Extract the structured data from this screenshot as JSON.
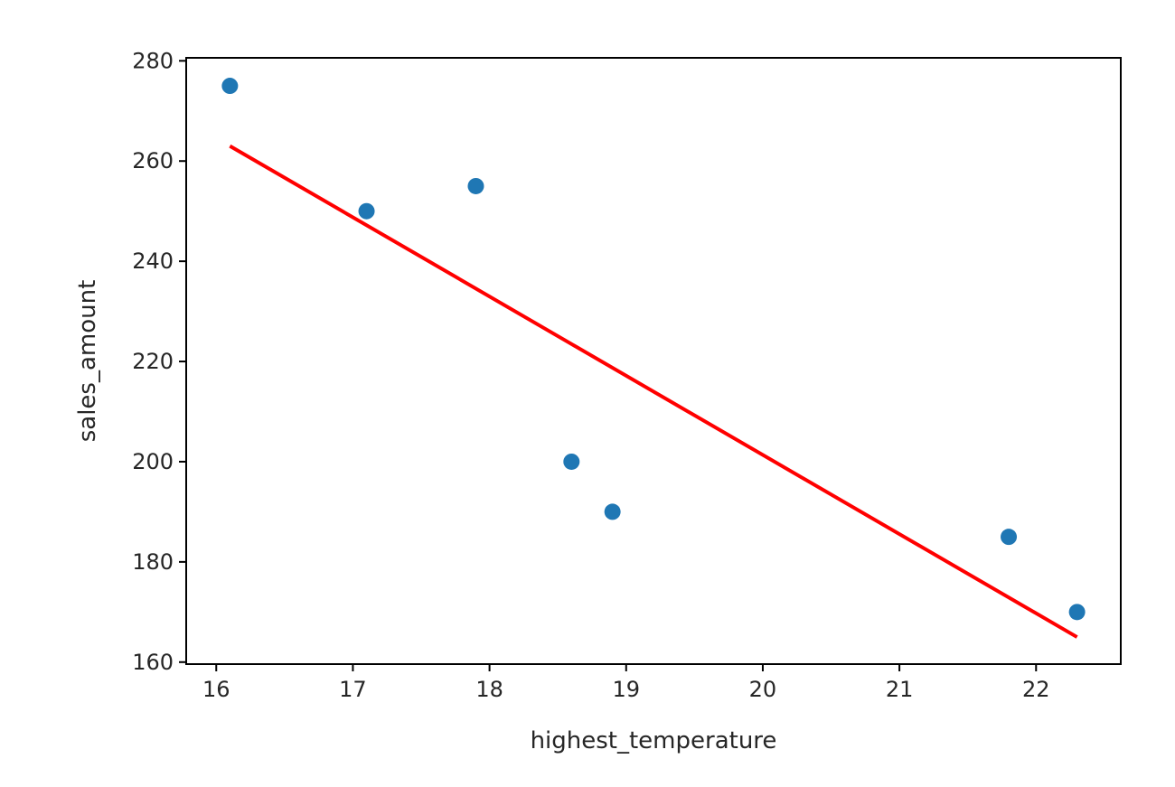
{
  "chart_data": {
    "type": "scatter",
    "title": "",
    "xlabel": "highest_temperature",
    "ylabel": "sales_amount",
    "xlim": [
      15.78,
      22.62
    ],
    "ylim": [
      159.6,
      280.6
    ],
    "xticks": [
      "16",
      "17",
      "18",
      "19",
      "20",
      "21",
      "22"
    ],
    "yticks": [
      "160",
      "180",
      "200",
      "220",
      "240",
      "260",
      "280"
    ],
    "grid": false,
    "legend": "none",
    "series": [
      {
        "kind": "scatter",
        "color": "#1f77b4",
        "points": [
          {
            "x": 16.1,
            "y": 275
          },
          {
            "x": 17.1,
            "y": 250
          },
          {
            "x": 17.9,
            "y": 255
          },
          {
            "x": 18.6,
            "y": 200
          },
          {
            "x": 18.9,
            "y": 190
          },
          {
            "x": 21.8,
            "y": 185
          },
          {
            "x": 22.3,
            "y": 170
          }
        ]
      },
      {
        "kind": "line",
        "color": "#ff0000",
        "points": [
          {
            "x": 16.1,
            "y": 263
          },
          {
            "x": 22.3,
            "y": 165
          }
        ]
      }
    ]
  }
}
